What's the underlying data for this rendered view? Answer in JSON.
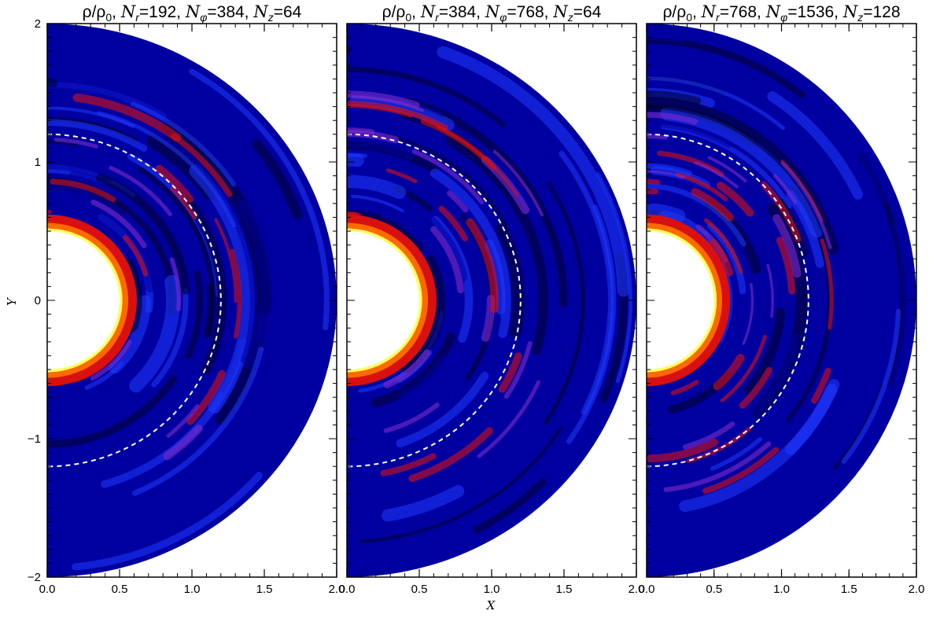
{
  "chart_data": [
    {
      "type": "heatmap",
      "panel": 1,
      "title": "ρ/ρ₀, N_r=192, N_φ=384, N_z=64",
      "title_parts": [
        "ρ/ρ",
        "0",
        ", ",
        "N",
        "r",
        "=192, ",
        "N",
        "φ",
        "=384, ",
        "N",
        "z",
        "=64"
      ],
      "xlim": [
        0.0,
        2.0
      ],
      "ylim": [
        -2.0,
        2.0
      ],
      "xticks": [
        "0.0",
        "0.5",
        "1.0",
        "1.5",
        "2.0"
      ],
      "yticks": [
        "−2",
        "−1",
        "0",
        "1",
        "2"
      ],
      "inner_radius": 0.5,
      "outer_radius": 2.0,
      "dashed_circle_radius": 1.2
    },
    {
      "type": "heatmap",
      "panel": 2,
      "title": "ρ/ρ₀, N_r=384, N_φ=768, N_z=64",
      "title_parts": [
        "ρ/ρ",
        "0",
        ", ",
        "N",
        "r",
        "=384, ",
        "N",
        "φ",
        "=768, ",
        "N",
        "z",
        "=64"
      ],
      "xlim": [
        0.0,
        2.0
      ],
      "ylim": [
        -2.0,
        2.0
      ],
      "xticks": [
        "0.0",
        "0.5",
        "1.0",
        "1.5",
        "2.0"
      ],
      "inner_radius": 0.5,
      "outer_radius": 2.0,
      "dashed_circle_radius": 1.2
    },
    {
      "type": "heatmap",
      "panel": 3,
      "title": "ρ/ρ₀, N_r=768, N_φ=1536, N_z=128",
      "title_parts": [
        "ρ/ρ",
        "0",
        ", ",
        "N",
        "r",
        "=768, ",
        "N",
        "φ",
        "=1536, ",
        "N",
        "z",
        "=128"
      ],
      "xlim": [
        0.0,
        2.0
      ],
      "ylim": [
        -2.0,
        2.0
      ],
      "xticks": [
        "0.0",
        "0.5",
        "1.0",
        "1.5",
        "2.0"
      ],
      "inner_radius": 0.5,
      "outer_radius": 2.0,
      "dashed_circle_radius": 1.2
    }
  ],
  "xlabel": "X",
  "ylabel": "Y",
  "colormap": [
    "#00002e",
    "#0000a0",
    "#1f3bff",
    "#7d2cc8",
    "#d81010",
    "#ff6a00",
    "#ffff60",
    "#ffffff"
  ],
  "colors": {
    "background": "#0a0f8c",
    "dashed_circle": "#ffffff",
    "axes": "#000000"
  }
}
